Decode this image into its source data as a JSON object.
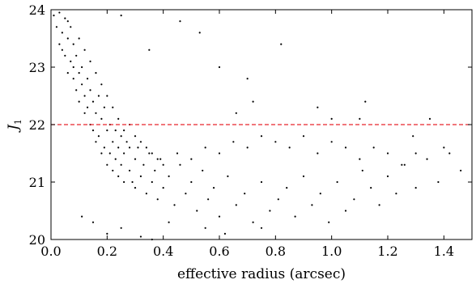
{
  "chart_data": {
    "type": "scatter",
    "title": "",
    "xlabel": "effective radius (arcsec)",
    "ylabel": "J",
    "ylabel_subscript": "1",
    "xlim": [
      0.0,
      1.5
    ],
    "ylim": [
      20,
      24
    ],
    "x_ticks": [
      0.0,
      0.2,
      0.4,
      0.6,
      0.8,
      1.0,
      1.2,
      1.4
    ],
    "x_tick_labels": [
      "0.0",
      "0.2",
      "0.4",
      "0.6",
      "0.8",
      "1.0",
      "1.2",
      "1.4"
    ],
    "y_ticks": [
      20,
      21,
      22,
      23,
      24
    ],
    "y_tick_labels": [
      "20",
      "21",
      "22",
      "23",
      "24"
    ],
    "grid": false,
    "marker_color": "#000000",
    "reference_line": {
      "orientation": "horizontal",
      "y": 22,
      "style": "dashed",
      "color": "#e8252c"
    },
    "series": [
      {
        "points": [
          [
            0.01,
            23.9
          ],
          [
            0.02,
            23.7
          ],
          [
            0.03,
            23.95
          ],
          [
            0.03,
            23.4
          ],
          [
            0.04,
            23.6
          ],
          [
            0.05,
            23.85
          ],
          [
            0.05,
            23.2
          ],
          [
            0.06,
            23.5
          ],
          [
            0.06,
            22.9
          ],
          [
            0.07,
            23.7
          ],
          [
            0.07,
            23.1
          ],
          [
            0.08,
            22.8
          ],
          [
            0.08,
            23.4
          ],
          [
            0.09,
            22.6
          ],
          [
            0.09,
            23.2
          ],
          [
            0.1,
            22.9
          ],
          [
            0.1,
            22.4
          ],
          [
            0.11,
            23.0
          ],
          [
            0.11,
            22.7
          ],
          [
            0.12,
            22.5
          ],
          [
            0.12,
            22.2
          ],
          [
            0.13,
            22.8
          ],
          [
            0.13,
            22.3
          ],
          [
            0.14,
            22.6
          ],
          [
            0.14,
            22.0
          ],
          [
            0.15,
            22.4
          ],
          [
            0.15,
            21.9
          ],
          [
            0.16,
            22.2
          ],
          [
            0.16,
            21.7
          ],
          [
            0.17,
            22.5
          ],
          [
            0.17,
            21.8
          ],
          [
            0.18,
            22.1
          ],
          [
            0.18,
            21.5
          ],
          [
            0.19,
            22.3
          ],
          [
            0.19,
            21.6
          ],
          [
            0.2,
            21.9
          ],
          [
            0.2,
            21.3
          ],
          [
            0.21,
            22.0
          ],
          [
            0.21,
            21.5
          ],
          [
            0.22,
            21.7
          ],
          [
            0.22,
            21.2
          ],
          [
            0.23,
            21.9
          ],
          [
            0.23,
            21.4
          ],
          [
            0.24,
            21.6
          ],
          [
            0.24,
            21.1
          ],
          [
            0.25,
            21.8
          ],
          [
            0.25,
            21.3
          ],
          [
            0.26,
            21.5
          ],
          [
            0.26,
            21.0
          ],
          [
            0.27,
            21.7
          ],
          [
            0.28,
            21.2
          ],
          [
            0.28,
            21.6
          ],
          [
            0.29,
            21.0
          ],
          [
            0.3,
            21.4
          ],
          [
            0.3,
            20.9
          ],
          [
            0.31,
            21.6
          ],
          [
            0.32,
            21.1
          ],
          [
            0.33,
            21.3
          ],
          [
            0.34,
            20.8
          ],
          [
            0.35,
            21.5
          ],
          [
            0.36,
            21.0
          ],
          [
            0.37,
            21.2
          ],
          [
            0.38,
            20.7
          ],
          [
            0.39,
            21.4
          ],
          [
            0.4,
            20.9
          ],
          [
            0.42,
            21.1
          ],
          [
            0.44,
            20.6
          ],
          [
            0.46,
            21.3
          ],
          [
            0.48,
            20.8
          ],
          [
            0.5,
            21.0
          ],
          [
            0.52,
            20.5
          ],
          [
            0.54,
            21.2
          ],
          [
            0.56,
            20.7
          ],
          [
            0.58,
            20.9
          ],
          [
            0.6,
            20.4
          ],
          [
            0.63,
            21.1
          ],
          [
            0.66,
            20.6
          ],
          [
            0.69,
            20.8
          ],
          [
            0.72,
            20.3
          ],
          [
            0.75,
            21.0
          ],
          [
            0.78,
            20.5
          ],
          [
            0.81,
            20.7
          ],
          [
            0.84,
            20.9
          ],
          [
            0.87,
            20.4
          ],
          [
            0.9,
            21.1
          ],
          [
            0.93,
            20.6
          ],
          [
            0.96,
            20.8
          ],
          [
            0.99,
            20.3
          ],
          [
            1.02,
            21.0
          ],
          [
            1.05,
            20.5
          ],
          [
            1.08,
            20.7
          ],
          [
            1.11,
            21.2
          ],
          [
            1.14,
            20.9
          ],
          [
            1.17,
            20.6
          ],
          [
            1.2,
            21.1
          ],
          [
            1.23,
            20.8
          ],
          [
            1.26,
            21.3
          ],
          [
            1.3,
            20.9
          ],
          [
            1.34,
            21.4
          ],
          [
            1.38,
            21.0
          ],
          [
            1.42,
            21.5
          ],
          [
            1.46,
            21.2
          ],
          [
            0.04,
            23.3
          ],
          [
            0.06,
            23.8
          ],
          [
            0.08,
            23.0
          ],
          [
            0.1,
            23.5
          ],
          [
            0.12,
            23.3
          ],
          [
            0.14,
            23.1
          ],
          [
            0.16,
            22.9
          ],
          [
            0.18,
            22.7
          ],
          [
            0.2,
            22.5
          ],
          [
            0.22,
            22.3
          ],
          [
            0.24,
            22.1
          ],
          [
            0.26,
            21.9
          ],
          [
            0.28,
            22.0
          ],
          [
            0.3,
            21.8
          ],
          [
            0.32,
            21.7
          ],
          [
            0.34,
            21.6
          ],
          [
            0.36,
            21.5
          ],
          [
            0.38,
            21.4
          ],
          [
            0.4,
            21.3
          ],
          [
            0.45,
            21.5
          ],
          [
            0.5,
            21.4
          ],
          [
            0.55,
            21.6
          ],
          [
            0.6,
            21.5
          ],
          [
            0.65,
            21.7
          ],
          [
            0.7,
            21.6
          ],
          [
            0.75,
            21.8
          ],
          [
            0.8,
            21.7
          ],
          [
            0.85,
            21.6
          ],
          [
            0.9,
            21.8
          ],
          [
            0.95,
            21.5
          ],
          [
            1.0,
            21.7
          ],
          [
            1.05,
            21.6
          ],
          [
            1.1,
            21.4
          ],
          [
            1.15,
            21.6
          ],
          [
            1.2,
            21.5
          ],
          [
            1.25,
            21.3
          ],
          [
            1.3,
            21.5
          ],
          [
            0.11,
            20.4
          ],
          [
            0.15,
            20.3
          ],
          [
            0.2,
            20.1
          ],
          [
            0.25,
            20.2
          ],
          [
            0.32,
            20.05
          ],
          [
            0.36,
            20.0
          ],
          [
            0.42,
            20.3
          ],
          [
            0.55,
            20.2
          ],
          [
            0.62,
            20.1
          ],
          [
            0.75,
            20.2
          ],
          [
            0.82,
            23.4
          ],
          [
            0.46,
            23.8
          ],
          [
            0.25,
            23.9
          ],
          [
            0.35,
            23.3
          ],
          [
            0.53,
            23.6
          ],
          [
            0.6,
            23.0
          ],
          [
            0.7,
            22.8
          ],
          [
            0.72,
            22.4
          ],
          [
            0.66,
            22.2
          ],
          [
            0.95,
            22.3
          ],
          [
            1.0,
            22.1
          ],
          [
            1.1,
            22.1
          ],
          [
            1.12,
            22.4
          ],
          [
            1.35,
            22.1
          ],
          [
            1.29,
            21.8
          ],
          [
            1.4,
            21.6
          ]
        ]
      }
    ]
  }
}
